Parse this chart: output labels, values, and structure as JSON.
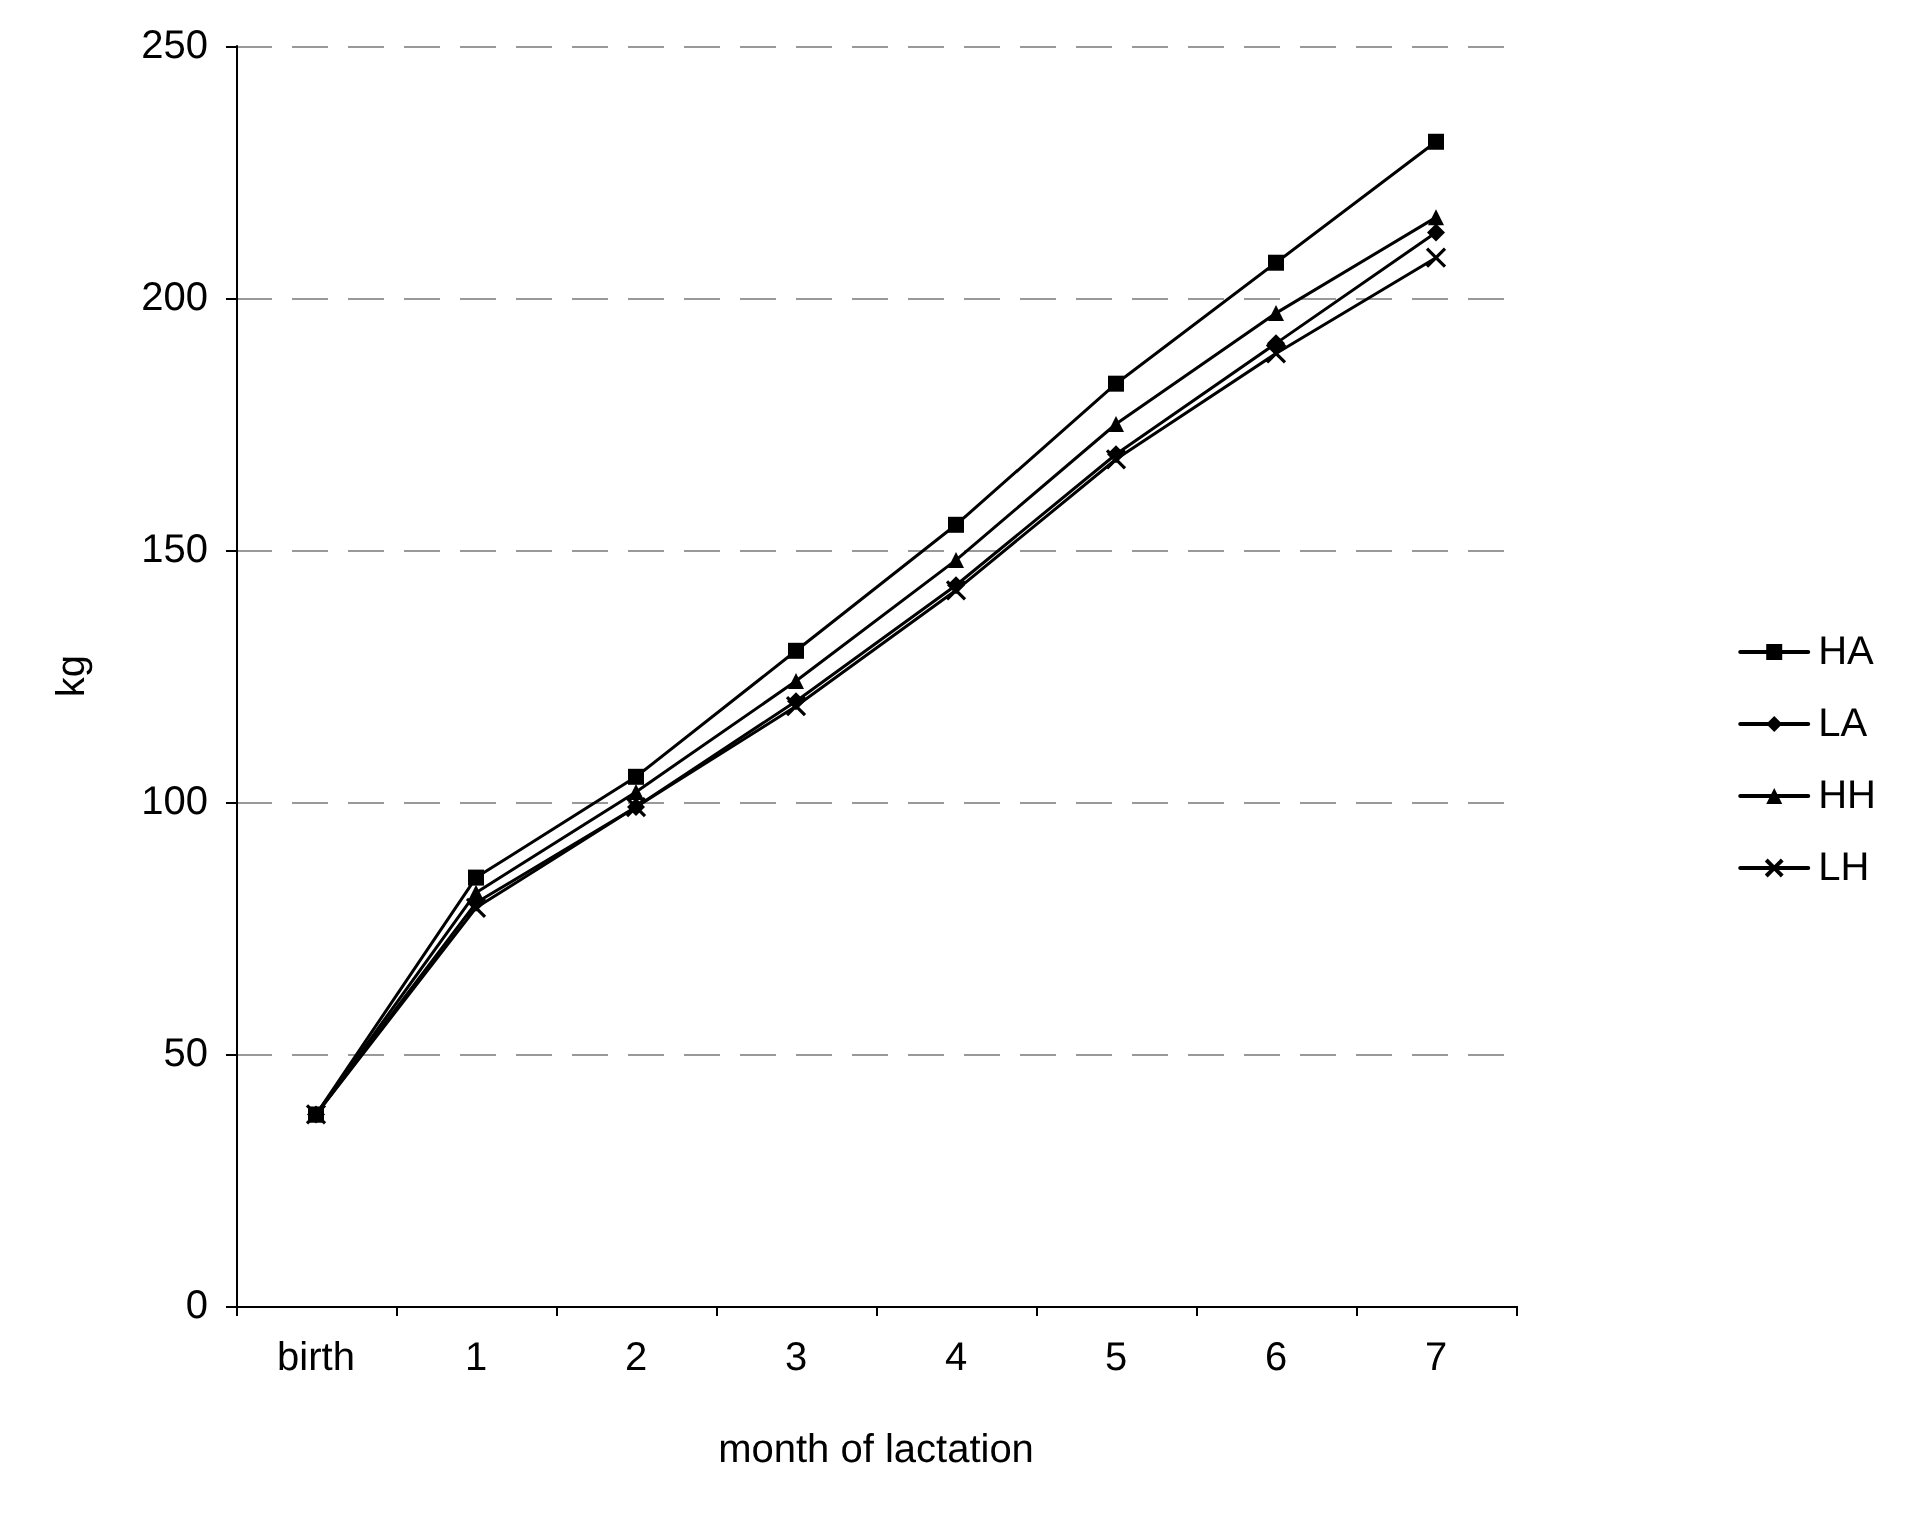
{
  "chart_data": {
    "type": "line",
    "xlabel": "month of lactation",
    "ylabel": "kg",
    "categories": [
      "birth",
      "1",
      "2",
      "3",
      "4",
      "5",
      "6",
      "7"
    ],
    "series": [
      {
        "name": "HA",
        "color": "#000000",
        "marker": "square",
        "values": [
          38,
          85,
          105,
          130,
          155,
          183,
          207,
          231
        ]
      },
      {
        "name": "LA",
        "color": "#000000",
        "marker": "diamond",
        "values": [
          38,
          80,
          99,
          120,
          143,
          169,
          191,
          213
        ]
      },
      {
        "name": "HH",
        "color": "#000000",
        "marker": "triangle",
        "values": [
          38,
          82,
          102,
          124,
          148,
          175,
          197,
          216
        ]
      },
      {
        "name": "LH",
        "color": "#000000",
        "marker": "cross",
        "values": [
          38,
          79,
          99,
          119,
          142,
          168,
          189,
          208
        ]
      }
    ],
    "ylim": [
      0,
      250
    ],
    "yticks": [
      0,
      50,
      100,
      150,
      200,
      250
    ],
    "grid": "y",
    "legend": "right"
  }
}
